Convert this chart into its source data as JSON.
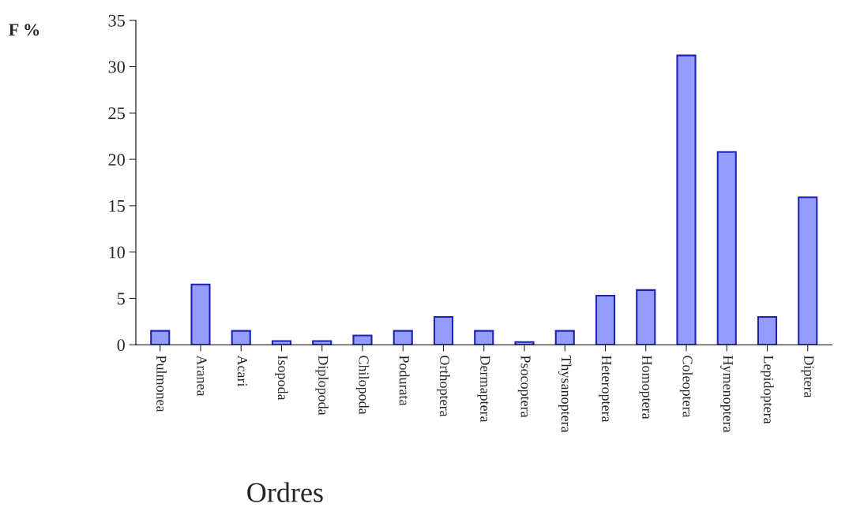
{
  "chart_data": {
    "type": "bar",
    "ylabel": "F %",
    "xlabel": "Ordres",
    "categories": [
      "Pulmonea",
      "Aranea",
      "Acari",
      "Isopoda",
      "Diplopoda",
      "Chilopoda",
      "Podurata",
      "Orthoptera",
      "Dermaptera",
      "Psocoptera",
      "Thysanoptera",
      "Heteroptera",
      "Homoptera",
      "Coleoptera",
      "Hymenoptera",
      "Lepidoptera",
      "Diptera"
    ],
    "values": [
      1.5,
      6.5,
      1.5,
      0.4,
      0.4,
      1.0,
      1.5,
      3.0,
      1.5,
      0.3,
      1.5,
      5.3,
      5.9,
      31.2,
      20.8,
      3.0,
      15.9
    ],
    "color": "#969cfc",
    "ylim": [
      0,
      35
    ],
    "yticks": [
      0,
      5,
      10,
      15,
      20,
      25,
      30,
      35
    ],
    "grid": false,
    "legend": false
  }
}
